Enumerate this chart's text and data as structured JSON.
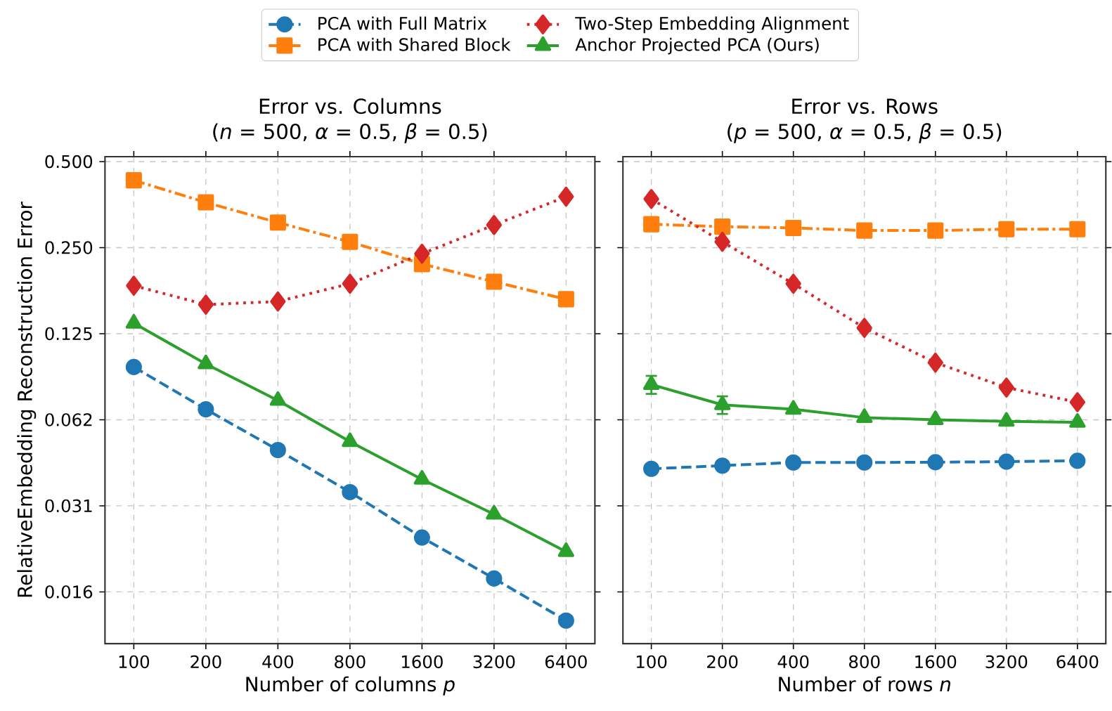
{
  "chart_data": [
    {
      "type": "line",
      "title": "Error vs. Columns",
      "subtitle": "(*n* = 500, *α* = 0.5, *β* = 0.5)",
      "xlabel": "Number of columns *p*",
      "ylabel": "RelativeEmbedding Reconstruction Error",
      "categories": [
        "100",
        "200",
        "400",
        "800",
        "1600",
        "3200",
        "6400"
      ],
      "log": "y",
      "ylim": [
        0.0103,
        0.52
      ],
      "yticks": [
        {
          "value": 0.5,
          "label": "0.500"
        },
        {
          "value": 0.25,
          "label": "0.250"
        },
        {
          "value": 0.125,
          "label": "0.125"
        },
        {
          "value": 0.0625,
          "label": "0.062"
        },
        {
          "value": 0.03125,
          "label": "0.031"
        },
        {
          "value": 0.015625,
          "label": "0.016"
        }
      ],
      "grid": true,
      "legend": "top",
      "series": [
        {
          "name": "PCA with Full Matrix",
          "color": "#1f77b4",
          "marker": "circle",
          "line_style": "dashed",
          "values": [
            0.0956,
            0.068,
            0.049,
            0.0349,
            0.0242,
            0.0174,
            0.0124
          ]
        },
        {
          "name": "PCA with Shared Block",
          "color": "#ff7f0e",
          "marker": "square",
          "line_style": "dashdot",
          "values": [
            0.43,
            0.36,
            0.306,
            0.262,
            0.219,
            0.19,
            0.165
          ]
        },
        {
          "name": "Two-Step Embedding Alignment",
          "color": "#d62728",
          "marker": "diamond",
          "line_style": "dotted",
          "values": [
            0.184,
            0.158,
            0.162,
            0.187,
            0.238,
            0.3,
            0.377
          ]
        },
        {
          "name": "Anchor Projected PCA (Ours)",
          "color": "#2ca02c",
          "marker": "triangle",
          "line_style": "solid",
          "values": [
            0.136,
            0.098,
            0.073,
            0.0524,
            0.0387,
            0.0292,
            0.0216
          ]
        }
      ]
    },
    {
      "type": "line",
      "title": "Error vs. Rows",
      "subtitle": "(*p* = 500, *α* = 0.5, *β* = 0.5)",
      "xlabel": "Number of rows *n*",
      "categories": [
        "100",
        "200",
        "400",
        "800",
        "1600",
        "3200",
        "6400"
      ],
      "log": "y",
      "ylim": [
        0.0103,
        0.52
      ],
      "yticks": [
        {
          "value": 0.5,
          "label": null
        },
        {
          "value": 0.25,
          "label": null
        },
        {
          "value": 0.125,
          "label": null
        },
        {
          "value": 0.0625,
          "label": null
        },
        {
          "value": 0.03125,
          "label": null
        },
        {
          "value": 0.015625,
          "label": null
        }
      ],
      "grid": true,
      "tick_labels": "x",
      "series": [
        {
          "color": "#1f77b4",
          "marker": "circle",
          "line_style": "dashed",
          "values": [
            0.0421,
            0.0432,
            0.0443,
            0.0443,
            0.0444,
            0.0446,
            0.0449
          ]
        },
        {
          "color": "#ff7f0e",
          "marker": "square",
          "line_style": "dashdot",
          "values": [
            0.302,
            0.296,
            0.293,
            0.287,
            0.287,
            0.29,
            0.29
          ]
        },
        {
          "color": "#d62728",
          "marker": "diamond",
          "line_style": "dotted",
          "values": [
            0.37,
            0.262,
            0.187,
            0.131,
            0.099,
            0.081,
            0.072
          ]
        },
        {
          "color": "#2ca02c",
          "marker": "triangle",
          "line_style": "solid",
          "values": [
            0.083,
            0.0705,
            0.068,
            0.0636,
            0.0625,
            0.0617,
            0.0612
          ],
          "errors": [
            0.006,
            0.005,
            null,
            null,
            null,
            null,
            null
          ]
        }
      ]
    }
  ]
}
